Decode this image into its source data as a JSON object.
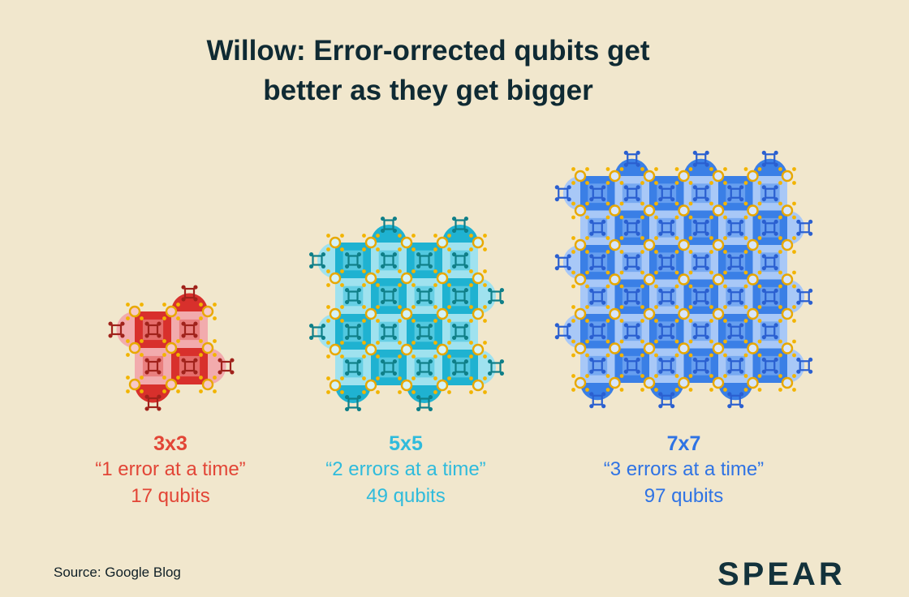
{
  "title": {
    "line1": "Willow: Error-orrected qubits get",
    "line2": "better as they get bigger"
  },
  "grids": [
    {
      "size": "3x3",
      "errors": "“1 error at a time”",
      "qubits": "17 qubits",
      "colors": {
        "dark": "#d8302c",
        "mid": "#e87776",
        "light": "#f2abad",
        "data": "#f7c8c8",
        "measure": "#a0221b",
        "caption": "#e24536"
      }
    },
    {
      "size": "5x5",
      "errors": "“2 errors at a time”",
      "qubits": "49 qubits",
      "colors": {
        "dark": "#1fb2d1",
        "mid": "#5ccbe2",
        "light": "#9fe2ef",
        "data": "#d4f2f8",
        "measure": "#0f7f88",
        "caption": "#2fbbdc"
      }
    },
    {
      "size": "7x7",
      "errors": "“3 errors at a time”",
      "qubits": "97 qubits",
      "colors": {
        "dark": "#3a7fe6",
        "mid": "#6ea3f0",
        "light": "#a8c8f7",
        "data": "#d7e5fb",
        "measure": "#2a5fd0",
        "caption": "#2f73e4"
      }
    }
  ],
  "source": "Source: Google Blog",
  "logo": "SPEAR"
}
